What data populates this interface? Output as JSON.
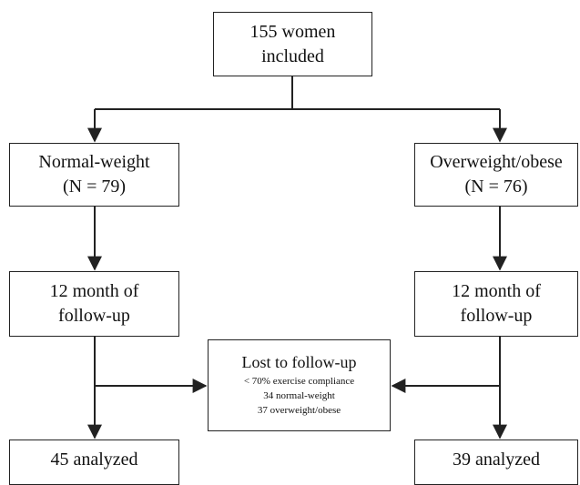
{
  "root": {
    "line1": "155 women",
    "line2": "included"
  },
  "left": {
    "group": {
      "line1": "Normal-weight",
      "line2": "(N = 79)"
    },
    "followup": {
      "line1": "12 month of",
      "line2": "follow-up"
    },
    "analyzed": "45 analyzed"
  },
  "right": {
    "group": {
      "line1": "Overweight/obese",
      "line2": "(N = 76)"
    },
    "followup": {
      "line1": "12 month of",
      "line2": "follow-up"
    },
    "analyzed": "39 analyzed"
  },
  "lost": {
    "title": "Lost to follow-up",
    "details": [
      "< 70% exercise compliance",
      "34 normal-weight",
      "37 overweight/obese"
    ]
  }
}
